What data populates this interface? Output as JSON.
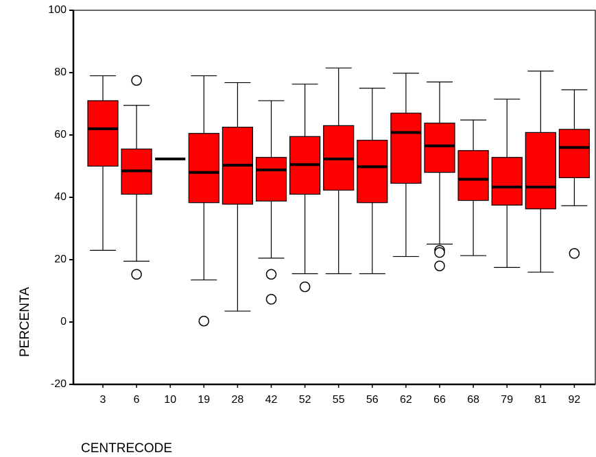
{
  "chart_data": {
    "type": "boxplot",
    "xlabel": "CENTRECODE",
    "ylabel": "PERCENTA",
    "ylim": [
      -20,
      100
    ],
    "yticks": [
      "-20",
      "0",
      "20",
      "40",
      "60",
      "80",
      "100"
    ],
    "grid": false,
    "colors": {
      "box_fill": "#ff0000",
      "stroke": "#000000",
      "background": "#ffffff"
    },
    "categories": [
      "3",
      "6",
      "10",
      "19",
      "28",
      "42",
      "52",
      "55",
      "56",
      "62",
      "66",
      "68",
      "79",
      "81",
      "92"
    ],
    "boxes": [
      {
        "category": "3",
        "whisker_low": 23,
        "q1": 50,
        "median": 62,
        "q3": 71,
        "whisker_high": 79,
        "outliers": []
      },
      {
        "category": "6",
        "whisker_low": 19.5,
        "q1": 41,
        "median": 48.5,
        "q3": 55.5,
        "whisker_high": 69.5,
        "outliers": [
          77.5,
          15.3
        ]
      },
      {
        "category": "10",
        "whisker_low": 52.3,
        "q1": 52.3,
        "median": 52.3,
        "q3": 52.3,
        "whisker_high": 52.3,
        "outliers": []
      },
      {
        "category": "19",
        "whisker_low": 13.5,
        "q1": 38.3,
        "median": 48,
        "q3": 60.5,
        "whisker_high": 79,
        "outliers": [
          0.3
        ]
      },
      {
        "category": "28",
        "whisker_low": 3.5,
        "q1": 37.8,
        "median": 50.3,
        "q3": 62.5,
        "whisker_high": 76.8,
        "outliers": []
      },
      {
        "category": "42",
        "whisker_low": 20.5,
        "q1": 38.8,
        "median": 48.8,
        "q3": 52.8,
        "whisker_high": 71,
        "outliers": [
          15.3,
          7.3
        ]
      },
      {
        "category": "52",
        "whisker_low": 15.5,
        "q1": 41,
        "median": 50.5,
        "q3": 59.5,
        "whisker_high": 76.3,
        "outliers": [
          11.3
        ]
      },
      {
        "category": "55",
        "whisker_low": 15.5,
        "q1": 42.3,
        "median": 52.3,
        "q3": 63,
        "whisker_high": 81.5,
        "outliers": []
      },
      {
        "category": "56",
        "whisker_low": 15.5,
        "q1": 38.3,
        "median": 49.8,
        "q3": 58.3,
        "whisker_high": 75,
        "outliers": []
      },
      {
        "category": "62",
        "whisker_low": 21,
        "q1": 44.5,
        "median": 60.8,
        "q3": 67,
        "whisker_high": 79.8,
        "outliers": []
      },
      {
        "category": "66",
        "whisker_low": 25,
        "q1": 48,
        "median": 56.5,
        "q3": 63.8,
        "whisker_high": 77,
        "outliers": [
          23,
          22.3,
          18
        ]
      },
      {
        "category": "68",
        "whisker_low": 21.3,
        "q1": 39,
        "median": 45.8,
        "q3": 55,
        "whisker_high": 64.8,
        "outliers": []
      },
      {
        "category": "79",
        "whisker_low": 17.5,
        "q1": 37.5,
        "median": 43.3,
        "q3": 52.8,
        "whisker_high": 71.5,
        "outliers": []
      },
      {
        "category": "81",
        "whisker_low": 16,
        "q1": 36.3,
        "median": 43.3,
        "q3": 60.8,
        "whisker_high": 80.5,
        "outliers": []
      },
      {
        "category": "92",
        "whisker_low": 37.3,
        "q1": 46.3,
        "median": 56,
        "q3": 61.8,
        "whisker_high": 74.5,
        "outliers": [
          22
        ]
      }
    ]
  }
}
